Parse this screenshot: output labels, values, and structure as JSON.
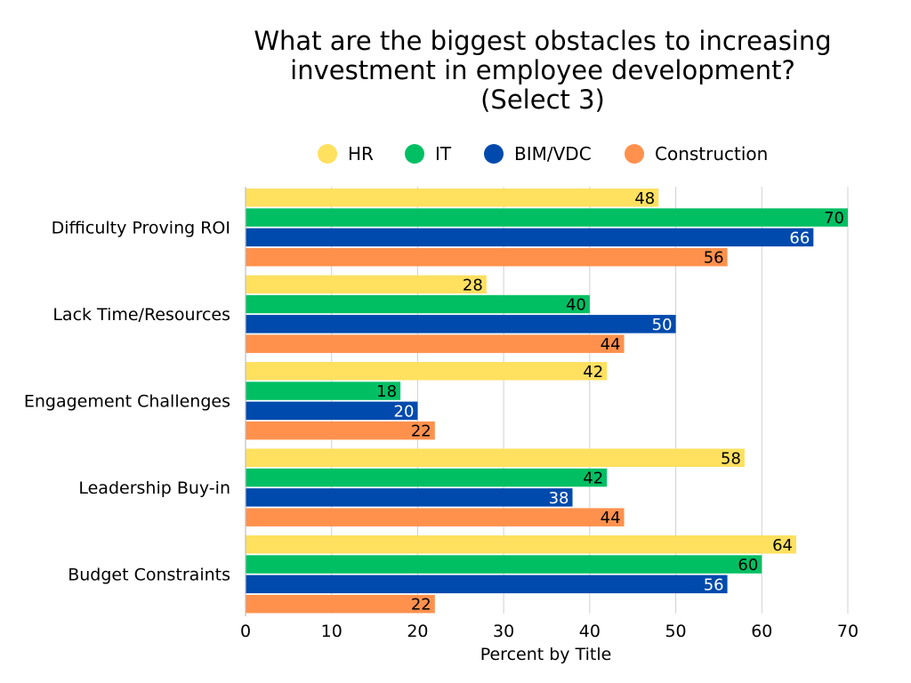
{
  "chart_data": {
    "type": "bar",
    "orientation": "horizontal",
    "title": [
      "What are the biggest obstacles to increasing",
      "investment in employee development?",
      "(Select 3)"
    ],
    "xlabel": "Percent by Title",
    "ylabel": "",
    "xlim": [
      0,
      70
    ],
    "xticks": [
      0,
      10,
      20,
      30,
      40,
      50,
      60,
      70
    ],
    "grid": true,
    "legend_position": "top",
    "categories": [
      "Difficulty Proving ROI",
      "Lack Time/Resources",
      "Engagement Challenges",
      "Leadership Buy-in",
      "Budget Constraints"
    ],
    "series": [
      {
        "name": "HR",
        "color": "#FFE05F",
        "label_color": "#000000",
        "values": [
          48,
          28,
          42,
          58,
          64
        ]
      },
      {
        "name": "IT",
        "color": "#00BF63",
        "label_color": "#000000",
        "values": [
          70,
          40,
          18,
          42,
          60
        ]
      },
      {
        "name": "BIM/VDC",
        "color": "#004AAD",
        "label_color": "#FFFFFF",
        "values": [
          66,
          50,
          20,
          38,
          56
        ]
      },
      {
        "name": "Construction",
        "color": "#FF914D",
        "label_color": "#000000",
        "values": [
          56,
          44,
          22,
          44,
          22
        ]
      }
    ]
  }
}
